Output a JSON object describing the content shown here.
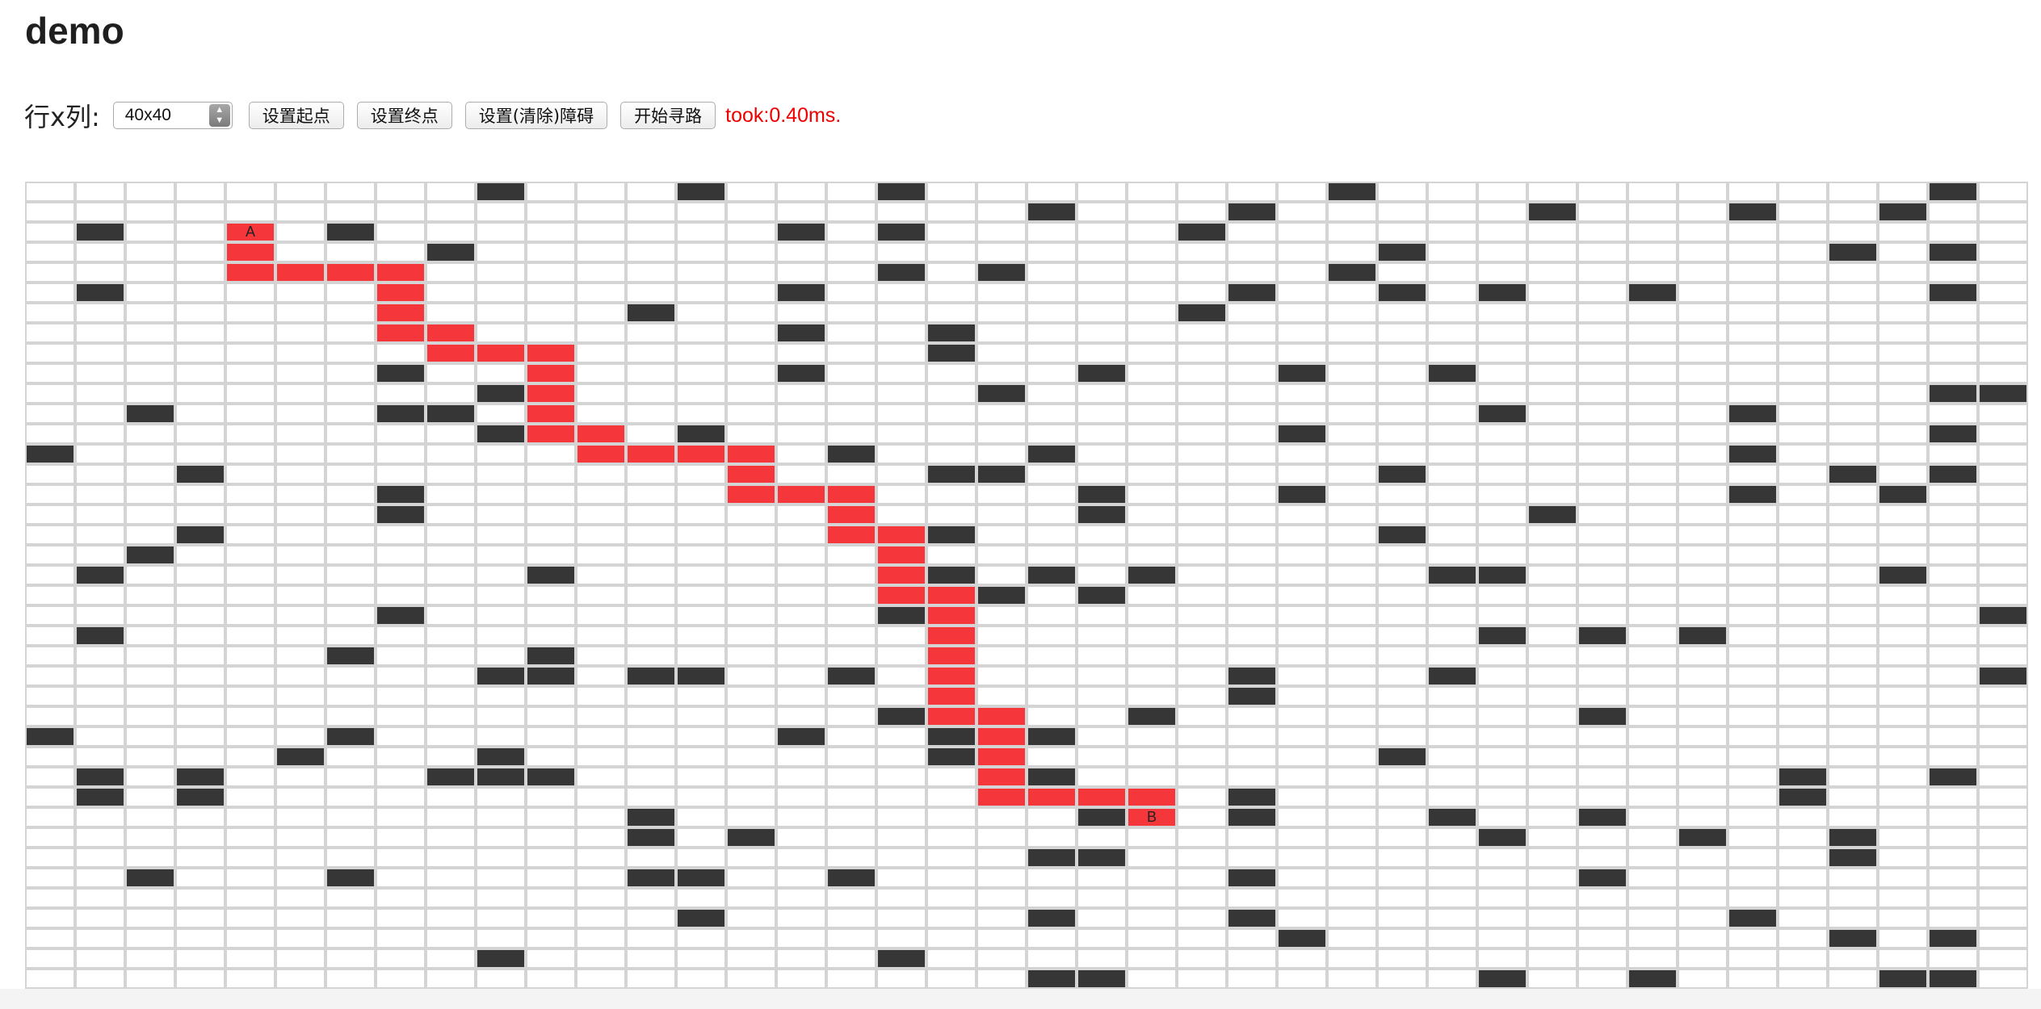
{
  "page": {
    "title": "demo"
  },
  "toolbar": {
    "size_label": "行x列:",
    "size_select": {
      "value": "40x40"
    },
    "buttons": {
      "set_start": "设置起点",
      "set_end": "设置终点",
      "toggle_walls": "设置(清除)障碍",
      "find_path": "开始寻路"
    },
    "timing": "took:0.40ms.",
    "timing_color": "#ee0000"
  },
  "grid": {
    "rows": 40,
    "cols": 40,
    "colors": {
      "empty": "#ffffff",
      "wall": "#363636",
      "path": "#f5363a",
      "border": "#d4d4d4"
    },
    "start": {
      "row": 2,
      "col": 4,
      "label": "A"
    },
    "end": {
      "row": 31,
      "col": 22,
      "label": "B"
    },
    "path": [
      [
        2,
        4
      ],
      [
        3,
        4
      ],
      [
        4,
        4
      ],
      [
        4,
        5
      ],
      [
        4,
        6
      ],
      [
        4,
        7
      ],
      [
        5,
        7
      ],
      [
        6,
        7
      ],
      [
        7,
        7
      ],
      [
        7,
        8
      ],
      [
        8,
        8
      ],
      [
        8,
        9
      ],
      [
        8,
        10
      ],
      [
        9,
        10
      ],
      [
        10,
        10
      ],
      [
        11,
        10
      ],
      [
        12,
        10
      ],
      [
        12,
        11
      ],
      [
        13,
        11
      ],
      [
        13,
        12
      ],
      [
        13,
        13
      ],
      [
        13,
        14
      ],
      [
        14,
        14
      ],
      [
        15,
        14
      ],
      [
        15,
        15
      ],
      [
        15,
        16
      ],
      [
        16,
        16
      ],
      [
        17,
        16
      ],
      [
        17,
        17
      ],
      [
        18,
        17
      ],
      [
        19,
        17
      ],
      [
        20,
        17
      ],
      [
        20,
        18
      ],
      [
        21,
        18
      ],
      [
        22,
        18
      ],
      [
        23,
        18
      ],
      [
        24,
        18
      ],
      [
        25,
        18
      ],
      [
        26,
        18
      ],
      [
        26,
        19
      ],
      [
        27,
        19
      ],
      [
        28,
        19
      ],
      [
        29,
        19
      ],
      [
        30,
        19
      ],
      [
        30,
        20
      ],
      [
        30,
        21
      ],
      [
        30,
        22
      ],
      [
        31,
        22
      ]
    ],
    "walls": [
      [
        0,
        9
      ],
      [
        0,
        13
      ],
      [
        0,
        17
      ],
      [
        0,
        26
      ],
      [
        0,
        38
      ],
      [
        1,
        20
      ],
      [
        1,
        24
      ],
      [
        1,
        30
      ],
      [
        1,
        34
      ],
      [
        1,
        37
      ],
      [
        2,
        1
      ],
      [
        2,
        6
      ],
      [
        2,
        15
      ],
      [
        2,
        17
      ],
      [
        2,
        23
      ],
      [
        3,
        8
      ],
      [
        3,
        27
      ],
      [
        3,
        36
      ],
      [
        3,
        38
      ],
      [
        4,
        17
      ],
      [
        4,
        19
      ],
      [
        4,
        26
      ],
      [
        5,
        1
      ],
      [
        5,
        15
      ],
      [
        5,
        24
      ],
      [
        5,
        27
      ],
      [
        5,
        29
      ],
      [
        5,
        32
      ],
      [
        5,
        38
      ],
      [
        6,
        12
      ],
      [
        6,
        23
      ],
      [
        7,
        15
      ],
      [
        7,
        18
      ],
      [
        8,
        18
      ],
      [
        9,
        7
      ],
      [
        9,
        15
      ],
      [
        9,
        21
      ],
      [
        9,
        25
      ],
      [
        9,
        28
      ],
      [
        10,
        9
      ],
      [
        10,
        19
      ],
      [
        10,
        38
      ],
      [
        10,
        39
      ],
      [
        11,
        2
      ],
      [
        11,
        7
      ],
      [
        11,
        8
      ],
      [
        11,
        29
      ],
      [
        11,
        34
      ],
      [
        12,
        9
      ],
      [
        12,
        13
      ],
      [
        12,
        25
      ],
      [
        12,
        38
      ],
      [
        13,
        0
      ],
      [
        13,
        16
      ],
      [
        13,
        20
      ],
      [
        13,
        34
      ],
      [
        14,
        3
      ],
      [
        14,
        18
      ],
      [
        14,
        19
      ],
      [
        14,
        27
      ],
      [
        14,
        36
      ],
      [
        14,
        38
      ],
      [
        15,
        7
      ],
      [
        15,
        21
      ],
      [
        15,
        25
      ],
      [
        15,
        34
      ],
      [
        15,
        37
      ],
      [
        16,
        7
      ],
      [
        16,
        21
      ],
      [
        16,
        30
      ],
      [
        17,
        3
      ],
      [
        17,
        18
      ],
      [
        17,
        27
      ],
      [
        18,
        2
      ],
      [
        19,
        1
      ],
      [
        19,
        10
      ],
      [
        19,
        18
      ],
      [
        19,
        20
      ],
      [
        19,
        22
      ],
      [
        19,
        28
      ],
      [
        19,
        29
      ],
      [
        19,
        37
      ],
      [
        20,
        19
      ],
      [
        20,
        21
      ],
      [
        21,
        7
      ],
      [
        21,
        17
      ],
      [
        21,
        39
      ],
      [
        22,
        1
      ],
      [
        22,
        29
      ],
      [
        22,
        31
      ],
      [
        22,
        33
      ],
      [
        23,
        6
      ],
      [
        23,
        10
      ],
      [
        24,
        9
      ],
      [
        24,
        10
      ],
      [
        24,
        12
      ],
      [
        24,
        13
      ],
      [
        24,
        16
      ],
      [
        24,
        24
      ],
      [
        24,
        28
      ],
      [
        24,
        39
      ],
      [
        25,
        24
      ],
      [
        26,
        17
      ],
      [
        26,
        22
      ],
      [
        26,
        31
      ],
      [
        27,
        0
      ],
      [
        27,
        6
      ],
      [
        27,
        15
      ],
      [
        27,
        18
      ],
      [
        27,
        20
      ],
      [
        28,
        5
      ],
      [
        28,
        9
      ],
      [
        28,
        18
      ],
      [
        28,
        27
      ],
      [
        29,
        1
      ],
      [
        29,
        3
      ],
      [
        29,
        8
      ],
      [
        29,
        9
      ],
      [
        29,
        10
      ],
      [
        29,
        20
      ],
      [
        29,
        35
      ],
      [
        29,
        38
      ],
      [
        30,
        1
      ],
      [
        30,
        3
      ],
      [
        30,
        24
      ],
      [
        30,
        35
      ],
      [
        31,
        12
      ],
      [
        31,
        21
      ],
      [
        31,
        24
      ],
      [
        31,
        28
      ],
      [
        31,
        31
      ],
      [
        32,
        12
      ],
      [
        32,
        14
      ],
      [
        32,
        29
      ],
      [
        32,
        33
      ],
      [
        32,
        36
      ],
      [
        33,
        20
      ],
      [
        33,
        21
      ],
      [
        33,
        36
      ],
      [
        34,
        2
      ],
      [
        34,
        6
      ],
      [
        34,
        12
      ],
      [
        34,
        13
      ],
      [
        34,
        16
      ],
      [
        34,
        24
      ],
      [
        34,
        31
      ],
      [
        36,
        13
      ],
      [
        36,
        20
      ],
      [
        36,
        24
      ],
      [
        36,
        34
      ],
      [
        37,
        25
      ],
      [
        37,
        36
      ],
      [
        37,
        38
      ],
      [
        38,
        9
      ],
      [
        38,
        17
      ],
      [
        39,
        20
      ],
      [
        39,
        21
      ],
      [
        39,
        29
      ],
      [
        39,
        32
      ],
      [
        39,
        37
      ],
      [
        39,
        38
      ]
    ]
  }
}
